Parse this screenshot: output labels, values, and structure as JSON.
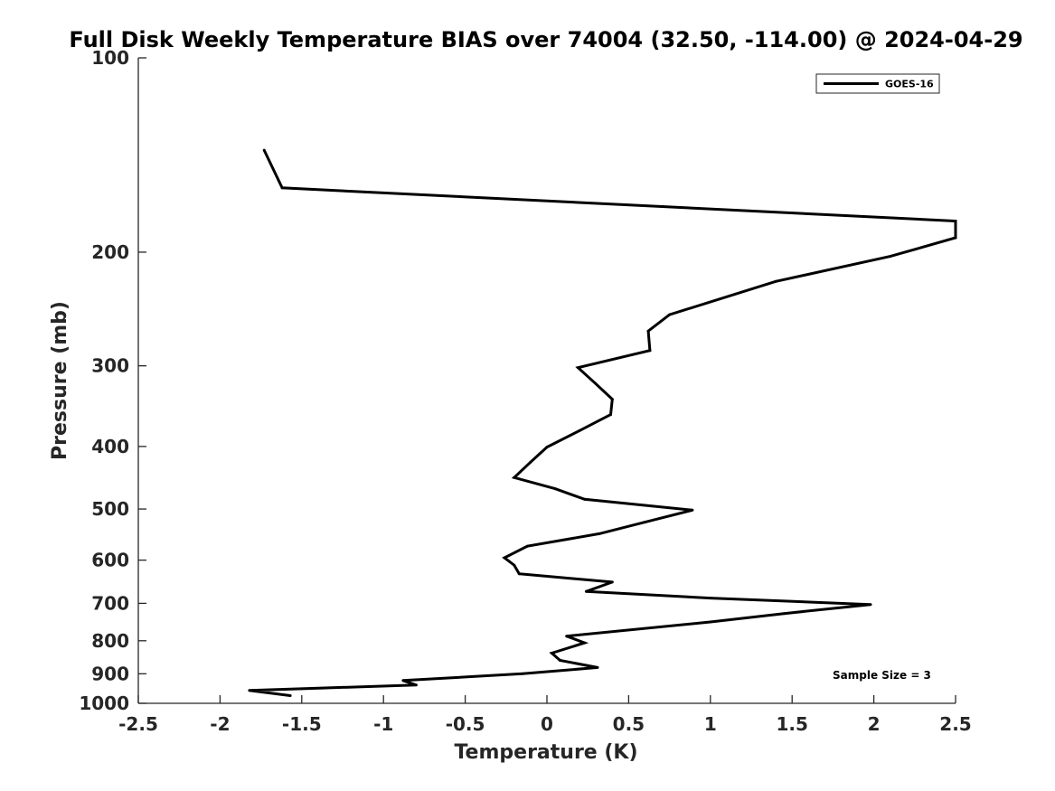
{
  "chart_data": {
    "type": "line",
    "title": "Full Disk Weekly Temperature BIAS over 74004 (32.50, -114.00) @ 2024-04-29",
    "xlabel": "Temperature (K)",
    "ylabel": "Pressure (mb)",
    "xlim": [
      -2.5,
      2.5
    ],
    "ylim": [
      100,
      1000
    ],
    "yscale": "log",
    "yaxis_reversed": true,
    "grid": false,
    "legend_position": "top-right",
    "x_ticks": [
      {
        "value": -2.5,
        "label": "-2.5"
      },
      {
        "value": -2,
        "label": "-2"
      },
      {
        "value": -1.5,
        "label": "-1.5"
      },
      {
        "value": -1,
        "label": "-1"
      },
      {
        "value": -0.5,
        "label": "-0.5"
      },
      {
        "value": 0,
        "label": "0"
      },
      {
        "value": 0.5,
        "label": "0.5"
      },
      {
        "value": 1,
        "label": "1"
      },
      {
        "value": 1.5,
        "label": "1.5"
      },
      {
        "value": 2,
        "label": "2"
      },
      {
        "value": 2.5,
        "label": "2.5"
      }
    ],
    "y_ticks": [
      {
        "value": 100,
        "label": "100"
      },
      {
        "value": 200,
        "label": "200"
      },
      {
        "value": 300,
        "label": "300"
      },
      {
        "value": 400,
        "label": "400"
      },
      {
        "value": 500,
        "label": "500"
      },
      {
        "value": 600,
        "label": "600"
      },
      {
        "value": 700,
        "label": "700"
      },
      {
        "value": 800,
        "label": "800"
      },
      {
        "value": 900,
        "label": "900"
      },
      {
        "value": 1000,
        "label": "1000"
      }
    ],
    "series": [
      {
        "name": "GOES-16",
        "color": "#000000",
        "points": [
          {
            "x": -1.73,
            "p": 139
          },
          {
            "x": -1.62,
            "p": 159
          },
          {
            "x": 2.5,
            "p": 179
          },
          {
            "x": 2.5,
            "p": 190
          },
          {
            "x": 2.1,
            "p": 203
          },
          {
            "x": 1.4,
            "p": 222
          },
          {
            "x": 0.75,
            "p": 250
          },
          {
            "x": 0.62,
            "p": 265
          },
          {
            "x": 0.63,
            "p": 284
          },
          {
            "x": 0.19,
            "p": 302
          },
          {
            "x": 0.3,
            "p": 320
          },
          {
            "x": 0.4,
            "p": 338
          },
          {
            "x": 0.39,
            "p": 357
          },
          {
            "x": 0.2,
            "p": 378
          },
          {
            "x": 0.0,
            "p": 401
          },
          {
            "x": -0.1,
            "p": 423
          },
          {
            "x": -0.2,
            "p": 447
          },
          {
            "x": 0.05,
            "p": 465
          },
          {
            "x": 0.23,
            "p": 483
          },
          {
            "x": 0.89,
            "p": 502
          },
          {
            "x": 0.6,
            "p": 524
          },
          {
            "x": 0.32,
            "p": 546
          },
          {
            "x": -0.12,
            "p": 571
          },
          {
            "x": -0.26,
            "p": 595
          },
          {
            "x": -0.2,
            "p": 611
          },
          {
            "x": -0.17,
            "p": 630
          },
          {
            "x": 0.4,
            "p": 649
          },
          {
            "x": 0.24,
            "p": 671
          },
          {
            "x": 1.0,
            "p": 687
          },
          {
            "x": 1.98,
            "p": 703
          },
          {
            "x": 1.45,
            "p": 726
          },
          {
            "x": 1.0,
            "p": 748
          },
          {
            "x": 0.12,
            "p": 787
          },
          {
            "x": 0.23,
            "p": 806
          },
          {
            "x": 0.03,
            "p": 836
          },
          {
            "x": 0.08,
            "p": 858
          },
          {
            "x": 0.31,
            "p": 880
          },
          {
            "x": -0.15,
            "p": 900
          },
          {
            "x": -0.88,
            "p": 922
          },
          {
            "x": -0.8,
            "p": 937
          },
          {
            "x": -1.82,
            "p": 955
          },
          {
            "x": -1.57,
            "p": 973
          }
        ]
      }
    ],
    "annotation": "Sample Size = 3"
  }
}
